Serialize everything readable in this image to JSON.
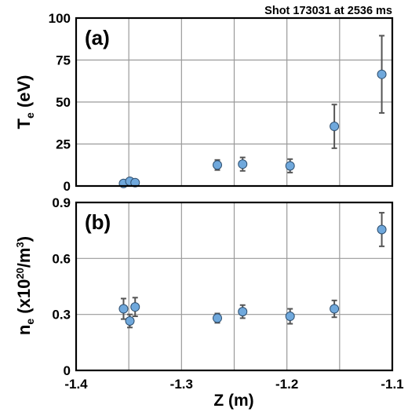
{
  "chart_data": [
    {
      "type": "scatter",
      "panel_label": "(a)",
      "annotation": "Shot 173031 at 2536 ms",
      "ylabel_main": "T",
      "ylabel_sub": "e",
      "ylabel_rest": " (eV)",
      "xlim": [
        -1.4,
        -1.1
      ],
      "ylim": [
        0,
        100
      ],
      "yticks": [
        "0",
        "25",
        "50",
        "75",
        "100"
      ],
      "grid": true,
      "points": [
        {
          "x": -1.355,
          "y": 1.5,
          "err": 0
        },
        {
          "x": -1.349,
          "y": 2.8,
          "err": 0
        },
        {
          "x": -1.344,
          "y": 2.0,
          "err": 0
        },
        {
          "x": -1.266,
          "y": 12.5,
          "err": 3
        },
        {
          "x": -1.242,
          "y": 13.0,
          "err": 4
        },
        {
          "x": -1.197,
          "y": 12.0,
          "err": 4
        },
        {
          "x": -1.155,
          "y": 35.5,
          "err": 13
        },
        {
          "x": -1.11,
          "y": 66.5,
          "err": 23
        }
      ]
    },
    {
      "type": "scatter",
      "panel_label": "(b)",
      "ylabel_main": "n",
      "ylabel_sub": "e",
      "ylabel_rest": " (x10",
      "ylabel_sup": "20",
      "ylabel_end": "/m",
      "ylabel_sup2": "3",
      "ylabel_close": ")",
      "xlabel": "Z (m)",
      "xlim": [
        -1.4,
        -1.1
      ],
      "ylim": [
        0,
        0.9
      ],
      "xticks": [
        "-1.4",
        "-1.3",
        "-1.2",
        "-1.1"
      ],
      "yticks": [
        "0",
        "0.3",
        "0.6",
        "0.9"
      ],
      "grid": true,
      "points": [
        {
          "x": -1.355,
          "y": 0.33,
          "err": 0.055
        },
        {
          "x": -1.349,
          "y": 0.265,
          "err": 0.035
        },
        {
          "x": -1.344,
          "y": 0.34,
          "err": 0.05
        },
        {
          "x": -1.266,
          "y": 0.28,
          "err": 0.025
        },
        {
          "x": -1.242,
          "y": 0.315,
          "err": 0.035
        },
        {
          "x": -1.197,
          "y": 0.29,
          "err": 0.04
        },
        {
          "x": -1.155,
          "y": 0.33,
          "err": 0.045
        },
        {
          "x": -1.11,
          "y": 0.755,
          "err": 0.09
        }
      ]
    }
  ]
}
